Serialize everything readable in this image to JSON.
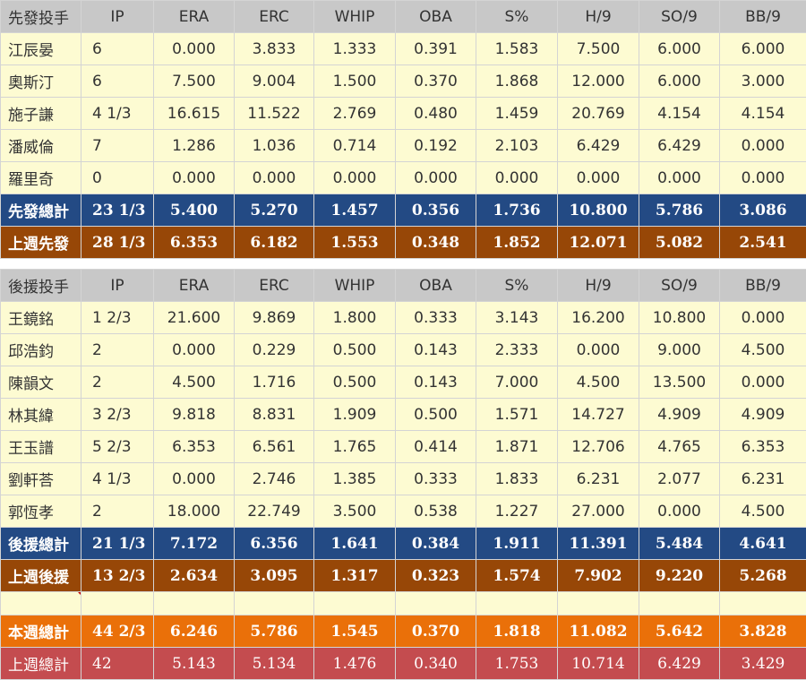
{
  "columns": [
    "IP",
    "ERA",
    "ERC",
    "WHIP",
    "OBA",
    "S%",
    "H/9",
    "SO/9",
    "BB/9"
  ],
  "starters": {
    "header": "先發投手",
    "rows": [
      {
        "name": "江辰晏",
        "ip": "6",
        "era": "0.000",
        "erc": "3.833",
        "whip": "1.333",
        "oba": "0.391",
        "s": "1.583",
        "h9": "7.500",
        "so9": "6.000",
        "bb9": "6.000"
      },
      {
        "name": "奧斯汀",
        "ip": "6",
        "era": "7.500",
        "erc": "9.004",
        "whip": "1.500",
        "oba": "0.370",
        "s": "1.868",
        "h9": "12.000",
        "so9": "6.000",
        "bb9": "3.000"
      },
      {
        "name": "施子謙",
        "ip": "4 1/3",
        "era": "16.615",
        "erc": "11.522",
        "whip": "2.769",
        "oba": "0.480",
        "s": "1.459",
        "h9": "20.769",
        "so9": "4.154",
        "bb9": "4.154"
      },
      {
        "name": "潘威倫",
        "ip": "7",
        "era": "1.286",
        "erc": "1.036",
        "whip": "0.714",
        "oba": "0.192",
        "s": "2.103",
        "h9": "6.429",
        "so9": "6.429",
        "bb9": "0.000"
      },
      {
        "name": "羅里奇",
        "ip": "0",
        "era": "0.000",
        "erc": "0.000",
        "whip": "0.000",
        "oba": "0.000",
        "s": "0.000",
        "h9": "0.000",
        "so9": "0.000",
        "bb9": "0.000"
      }
    ],
    "total": {
      "name": "先發總計",
      "ip": "23 1/3",
      "era": "5.400",
      "erc": "5.270",
      "whip": "1.457",
      "oba": "0.356",
      "s": "1.736",
      "h9": "10.800",
      "so9": "5.786",
      "bb9": "3.086"
    },
    "last_week": {
      "name": "上週先發",
      "ip": "28 1/3",
      "era": "6.353",
      "erc": "6.182",
      "whip": "1.553",
      "oba": "0.348",
      "s": "1.852",
      "h9": "12.071",
      "so9": "5.082",
      "bb9": "2.541"
    }
  },
  "relievers": {
    "header": "後援投手",
    "rows": [
      {
        "name": "王鏡銘",
        "ip": "1 2/3",
        "era": "21.600",
        "erc": "9.869",
        "whip": "1.800",
        "oba": "0.333",
        "s": "3.143",
        "h9": "16.200",
        "so9": "10.800",
        "bb9": "0.000"
      },
      {
        "name": "邱浩鈞",
        "ip": "2",
        "era": "0.000",
        "erc": "0.229",
        "whip": "0.500",
        "oba": "0.143",
        "s": "2.333",
        "h9": "0.000",
        "so9": "9.000",
        "bb9": "4.500"
      },
      {
        "name": "陳韻文",
        "ip": "2",
        "era": "4.500",
        "erc": "1.716",
        "whip": "0.500",
        "oba": "0.143",
        "s": "7.000",
        "h9": "4.500",
        "so9": "13.500",
        "bb9": "0.000"
      },
      {
        "name": "林其緯",
        "ip": "3 2/3",
        "era": "9.818",
        "erc": "8.831",
        "whip": "1.909",
        "oba": "0.500",
        "s": "1.571",
        "h9": "14.727",
        "so9": "4.909",
        "bb9": "4.909"
      },
      {
        "name": "王玉譜",
        "ip": "5 2/3",
        "era": "6.353",
        "erc": "6.561",
        "whip": "1.765",
        "oba": "0.414",
        "s": "1.871",
        "h9": "12.706",
        "so9": "4.765",
        "bb9": "6.353"
      },
      {
        "name": "劉軒荅",
        "ip": "4 1/3",
        "era": "0.000",
        "erc": "2.746",
        "whip": "1.385",
        "oba": "0.333",
        "s": "1.833",
        "h9": "6.231",
        "so9": "2.077",
        "bb9": "6.231"
      },
      {
        "name": "郭恆孝",
        "ip": "2",
        "era": "18.000",
        "erc": "22.749",
        "whip": "3.500",
        "oba": "0.538",
        "s": "1.227",
        "h9": "27.000",
        "so9": "0.000",
        "bb9": "4.500"
      }
    ],
    "total": {
      "name": "後援總計",
      "ip": "21 1/3",
      "era": "7.172",
      "erc": "6.356",
      "whip": "1.641",
      "oba": "0.384",
      "s": "1.911",
      "h9": "11.391",
      "so9": "5.484",
      "bb9": "4.641"
    },
    "last_week": {
      "name": "上週後援",
      "ip": "13 2/3",
      "era": "2.634",
      "erc": "3.095",
      "whip": "1.317",
      "oba": "0.323",
      "s": "1.574",
      "h9": "7.902",
      "so9": "9.220",
      "bb9": "5.268"
    }
  },
  "this_week_total": {
    "name": "本週總計",
    "ip": "44 2/3",
    "era": "6.246",
    "erc": "5.786",
    "whip": "1.545",
    "oba": "0.370",
    "s": "1.818",
    "h9": "11.082",
    "so9": "5.642",
    "bb9": "3.828"
  },
  "last_week_total": {
    "name": "上週總計",
    "ip": "42",
    "era": "5.143",
    "erc": "5.134",
    "whip": "1.476",
    "oba": "0.340",
    "s": "1.753",
    "h9": "10.714",
    "so9": "6.429",
    "bb9": "3.429"
  },
  "colors": {
    "header_bg": "#c8c8c8",
    "row_bg": "#fdfbd2",
    "starter_total_bg": "#234a84",
    "last_week_starter_bg": "#974707",
    "this_week_total_bg": "#ea7009",
    "last_week_total_bg": "#c44c4f"
  }
}
